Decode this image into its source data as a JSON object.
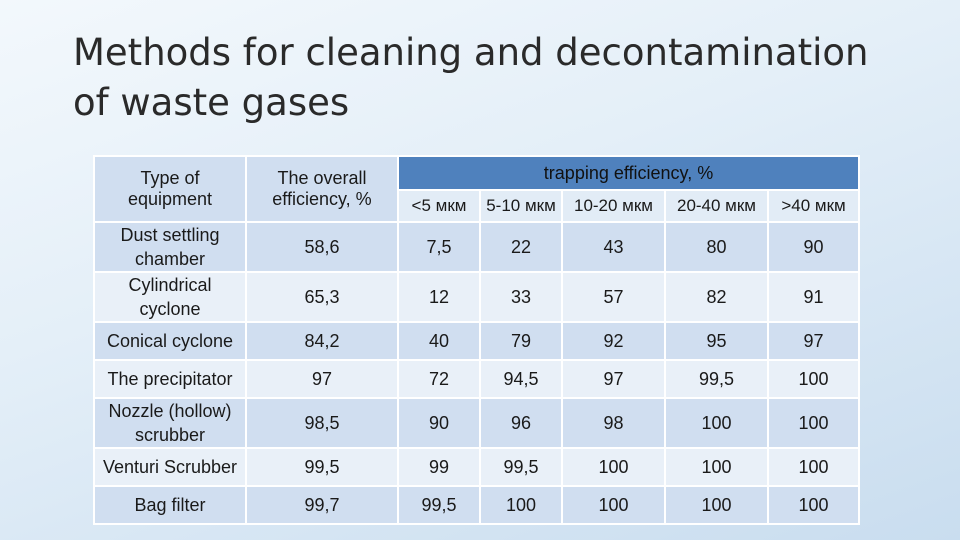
{
  "slide": {
    "title": "Methods for cleaning and decontamination of waste gases"
  },
  "table": {
    "headers": {
      "type_of_equipment": "Type of equipment",
      "overall_efficiency": "The overall efficiency, %",
      "trapping_efficiency": "trapping efficiency, %",
      "size_ranges": [
        "<5 мкм",
        "5-10 мкм",
        "10-20 мкм",
        "20-40 мкм",
        ">40 мкм"
      ]
    },
    "rows": [
      {
        "equipment": "Dust settling chamber",
        "overall": "58,6",
        "values": [
          "7,5",
          "22",
          "43",
          "80",
          "90"
        ]
      },
      {
        "equipment": "Cylindrical cyclone",
        "overall": "65,3",
        "values": [
          "12",
          "33",
          "57",
          "82",
          "91"
        ]
      },
      {
        "equipment": "Conical cyclone",
        "overall": "84,2",
        "values": [
          "40",
          "79",
          "92",
          "95",
          "97"
        ]
      },
      {
        "equipment": "The precipitator",
        "overall": "97",
        "values": [
          "72",
          "94,5",
          "97",
          "99,5",
          "100"
        ]
      },
      {
        "equipment": "Nozzle (hollow) scrubber",
        "overall": "98,5",
        "values": [
          "90",
          "96",
          "98",
          "100",
          "100"
        ]
      },
      {
        "equipment": "Venturi Scrubber",
        "overall": "99,5",
        "values": [
          "99",
          "99,5",
          "100",
          "100",
          "100"
        ]
      },
      {
        "equipment": "Bag filter",
        "overall": "99,7",
        "values": [
          "99,5",
          "100",
          "100",
          "100",
          "100"
        ]
      }
    ]
  },
  "colors": {
    "header_blue": "#4f81bd",
    "row_dark": "#d0def0",
    "row_light": "#e9f0f8"
  }
}
